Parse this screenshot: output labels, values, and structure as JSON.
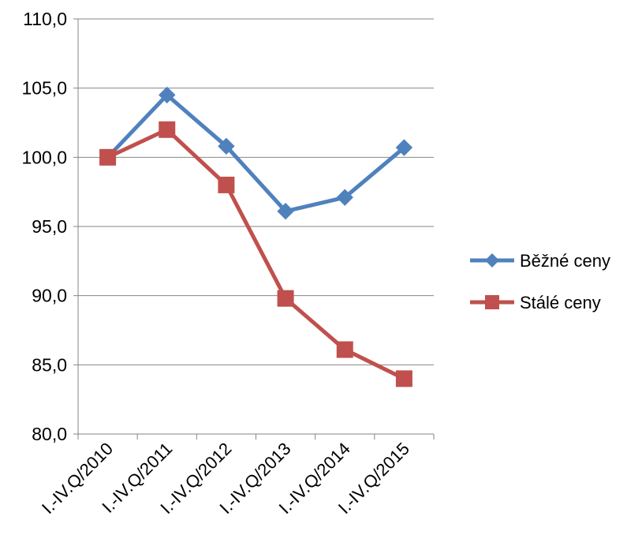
{
  "chart_data": {
    "type": "line",
    "title": "",
    "xlabel": "",
    "ylabel": "",
    "categories": [
      "I.-IV.Q/2010",
      "I.-IV.Q/2011",
      "I.-IV.Q/2012",
      "I.-IV.Q/2013",
      "I.-IV.Q/2014",
      "I.-IV.Q/2015"
    ],
    "ylim": [
      80,
      110
    ],
    "yticks": [
      80,
      85,
      90,
      95,
      100,
      105,
      110
    ],
    "ytick_labels": [
      "80,0",
      "85,0",
      "90,0",
      "95,0",
      "100,0",
      "105,0",
      "110,0"
    ],
    "grid": true,
    "legend_position": "right",
    "series": [
      {
        "name": "Běžné ceny",
        "color": "#4F81BD",
        "marker": "diamond",
        "values": [
          100.0,
          104.5,
          100.8,
          96.1,
          97.1,
          100.7
        ]
      },
      {
        "name": "Stálé ceny",
        "color": "#C0504D",
        "marker": "square",
        "values": [
          100.0,
          102.0,
          98.0,
          89.8,
          86.1,
          84.0
        ]
      }
    ]
  }
}
